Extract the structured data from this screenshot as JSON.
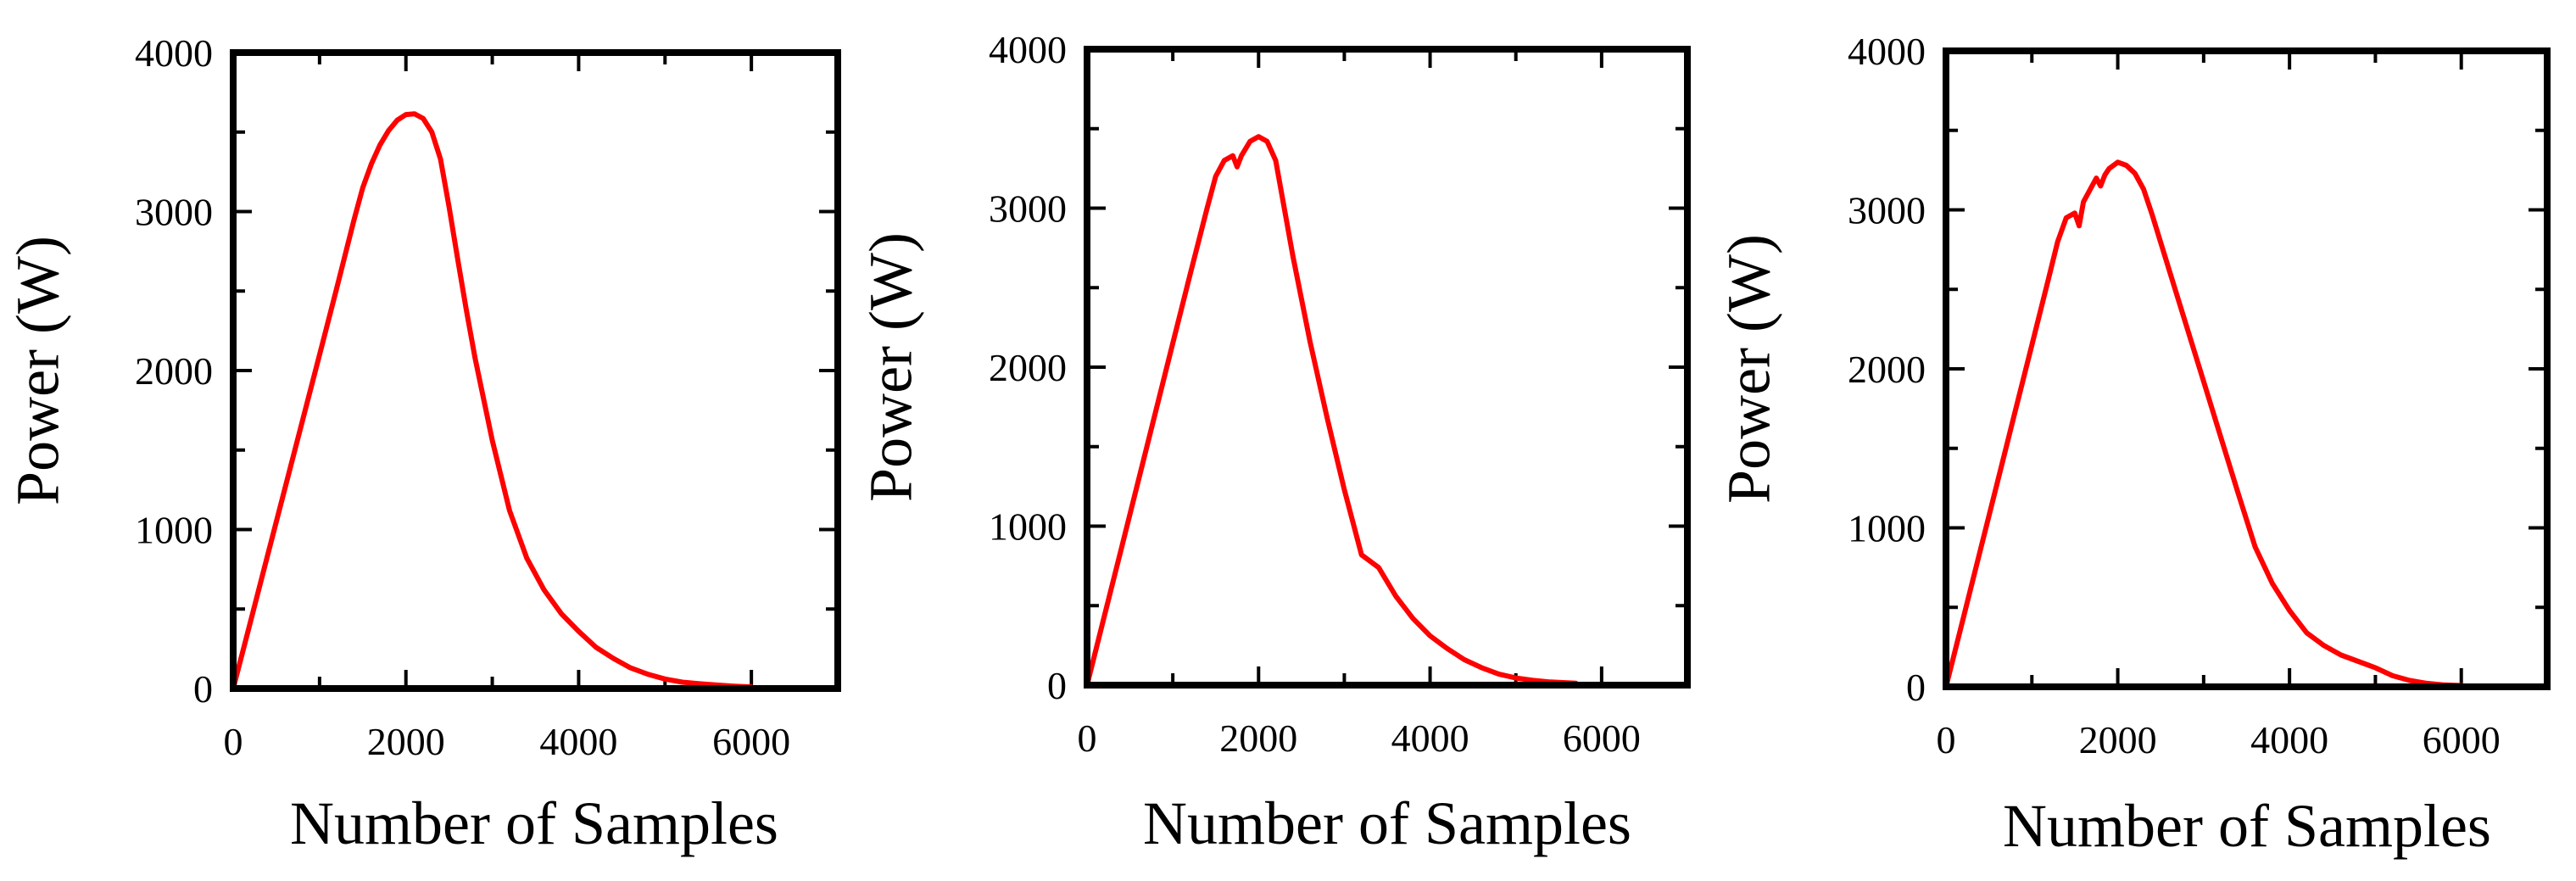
{
  "chart_data": [
    {
      "type": "line",
      "xlabel": "Number of Samples",
      "ylabel": "Power (W)",
      "xlim": [
        0,
        7000
      ],
      "ylim": [
        0,
        4000
      ],
      "xticks": [
        0,
        2000,
        4000,
        6000
      ],
      "yticks": [
        0,
        1000,
        2000,
        3000,
        4000
      ],
      "grid": false,
      "series": [
        {
          "color": "#ff0000",
          "x": [
            0,
            200,
            400,
            600,
            800,
            1000,
            1200,
            1400,
            1500,
            1600,
            1700,
            1800,
            1900,
            2000,
            2100,
            2200,
            2300,
            2400,
            2500,
            2600,
            2700,
            2800,
            3000,
            3200,
            3400,
            3600,
            3800,
            4000,
            4200,
            4400,
            4600,
            4800,
            5000,
            5200,
            5400,
            5600,
            5800,
            6000
          ],
          "y": [
            0,
            420,
            840,
            1260,
            1680,
            2100,
            2520,
            2950,
            3150,
            3300,
            3420,
            3510,
            3575,
            3610,
            3615,
            3585,
            3500,
            3330,
            3030,
            2700,
            2380,
            2080,
            1560,
            1120,
            820,
            620,
            470,
            360,
            260,
            190,
            130,
            90,
            60,
            40,
            30,
            22,
            15,
            10
          ]
        }
      ]
    },
    {
      "type": "line",
      "xlabel": "Number of Samples",
      "ylabel": "Power (W)",
      "xlim": [
        0,
        7000
      ],
      "ylim": [
        0,
        4000
      ],
      "xticks": [
        0,
        2000,
        4000,
        6000
      ],
      "yticks": [
        0,
        1000,
        2000,
        3000,
        4000
      ],
      "grid": false,
      "series": [
        {
          "color": "#ff0000",
          "x": [
            0,
            200,
            400,
            600,
            800,
            1000,
            1200,
            1400,
            1500,
            1600,
            1700,
            1750,
            1800,
            1900,
            2000,
            2100,
            2200,
            2300,
            2400,
            2600,
            2800,
            3000,
            3200,
            3400,
            3600,
            3800,
            4000,
            4200,
            4400,
            4600,
            4800,
            5000,
            5200,
            5400,
            5700
          ],
          "y": [
            0,
            430,
            860,
            1290,
            1720,
            2150,
            2580,
            3000,
            3200,
            3300,
            3330,
            3260,
            3330,
            3420,
            3450,
            3420,
            3300,
            3000,
            2700,
            2160,
            1680,
            1230,
            820,
            740,
            560,
            420,
            310,
            230,
            160,
            110,
            70,
            45,
            30,
            20,
            12
          ]
        }
      ]
    },
    {
      "type": "line",
      "xlabel": "Number of Samples",
      "ylabel": "Power (W)",
      "xlim": [
        0,
        7000
      ],
      "ylim": [
        0,
        4000
      ],
      "xticks": [
        0,
        2000,
        4000,
        6000
      ],
      "yticks": [
        0,
        1000,
        2000,
        3000,
        4000
      ],
      "grid": false,
      "series": [
        {
          "color": "#ff0000",
          "x": [
            0,
            200,
            400,
            600,
            800,
            1000,
            1200,
            1300,
            1400,
            1500,
            1550,
            1600,
            1700,
            1750,
            1800,
            1850,
            1900,
            2000,
            2100,
            2200,
            2300,
            2400,
            2600,
            2800,
            3000,
            3200,
            3400,
            3600,
            3800,
            4000,
            4200,
            4400,
            4600,
            4800,
            5000,
            5200,
            5400,
            5600,
            5800,
            6000
          ],
          "y": [
            0,
            430,
            860,
            1290,
            1720,
            2150,
            2580,
            2800,
            2950,
            2980,
            2900,
            3050,
            3150,
            3200,
            3150,
            3220,
            3260,
            3300,
            3280,
            3230,
            3130,
            2970,
            2620,
            2270,
            1920,
            1570,
            1220,
            880,
            650,
            480,
            340,
            260,
            200,
            160,
            120,
            70,
            40,
            22,
            12,
            8
          ]
        }
      ]
    }
  ]
}
